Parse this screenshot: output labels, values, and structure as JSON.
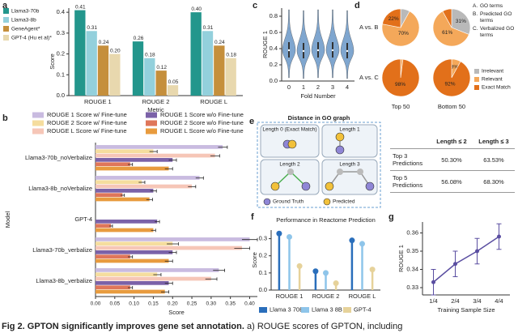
{
  "panel_labels": [
    "a",
    "b",
    "c",
    "d",
    "e",
    "f",
    "g"
  ],
  "caption": {
    "label": "Fig 2.",
    "bold": "GPTON significantly improves gene set annotation.",
    "text": "a) ROUGE scores of GPTON, including"
  },
  "chart_data": [
    {
      "type": "bar",
      "y_label": "Score",
      "x_label": "Metric",
      "categories": [
        "ROUGE 1",
        "ROUGE 2",
        "ROUGE L"
      ],
      "ylim": [
        0,
        0.42
      ],
      "yticks": [
        {
          "value": 0,
          "label": "0.0"
        },
        0.1,
        0.2,
        0.3,
        0.4
      ],
      "legend": "left",
      "series": [
        {
          "name": "Llama3-70b",
          "color": "#23968c",
          "values": [
            0.41,
            0.26,
            0.4
          ],
          "value_labels": [
            "0.41",
            "0.26",
            "0.40"
          ]
        },
        {
          "name": "Llama3-8b",
          "color": "#93d0dc",
          "values": [
            0.31,
            0.18,
            0.31
          ],
          "value_labels": [
            "0.31",
            "0.18",
            "0.31"
          ]
        },
        {
          "name": "GeneAgent*",
          "color": "#c58f3c",
          "values": [
            0.24,
            0.12,
            0.24
          ],
          "value_labels": [
            "0.24",
            "0.12",
            "0.24"
          ]
        },
        {
          "name": "GPT-4 (Hu et al)*",
          "color": "#e8d8ae",
          "values": [
            0.2,
            0.05,
            0.18
          ],
          "value_labels": [
            "0.20",
            "0.05",
            "0.18"
          ]
        }
      ]
    },
    {
      "type": "hbar",
      "y_label": "Model",
      "x_label": "Score",
      "categories": [
        "Llama3-70b_noVerbalize",
        "Llama3-8b_noVerbalize",
        "GPT-4",
        "Llama3-70b_verbalize",
        "Llama3-8b_verbalize"
      ],
      "xlim": [
        0,
        0.42
      ],
      "xticks": [
        {
          "value": 0,
          "label": "0.00"
        },
        {
          "value": 0.05,
          "label": "0.05"
        },
        {
          "value": 0.1,
          "label": "0.10"
        },
        {
          "value": 0.15,
          "label": "0.15"
        },
        {
          "value": 0.2,
          "label": "0.20"
        },
        {
          "value": 0.25,
          "label": "0.25"
        },
        {
          "value": 0.3,
          "label": "0.30"
        },
        {
          "value": 0.35,
          "label": "0.35"
        },
        {
          "value": 0.4,
          "label": "0.40"
        }
      ],
      "legend": "top",
      "series": [
        {
          "name": "ROUGE 1 Score w/ Fine-tune",
          "color": "#c9bbe0",
          "values": [
            0.33,
            0.27,
            null,
            0.4,
            0.32
          ],
          "errors": [
            0.012,
            0.01,
            null,
            0.02,
            0.015
          ]
        },
        {
          "name": "ROUGE 2 Score w/ Fine-tune",
          "color": "#f5dd9e",
          "values": [
            0.15,
            0.12,
            null,
            0.2,
            0.16
          ],
          "errors": [
            0.01,
            0.008,
            null,
            0.015,
            0.01
          ]
        },
        {
          "name": "ROUGE L Score w/ Fine-tune",
          "color": "#f6c6b7",
          "values": [
            0.31,
            0.25,
            null,
            0.38,
            0.3
          ],
          "errors": [
            0.012,
            0.01,
            null,
            0.02,
            0.015
          ]
        },
        {
          "name": "ROUGE 1 Score w/o Fine-tune",
          "color": "#7b62a8",
          "values": [
            0.2,
            0.15,
            0.16,
            0.2,
            0.19
          ],
          "errors": [
            0.01,
            0.008,
            0.006,
            0.01,
            0.01
          ]
        },
        {
          "name": "ROUGE 2 Score w/o Fine-tune",
          "color": "#df765a",
          "values": [
            0.09,
            0.07,
            0.04,
            0.09,
            0.09
          ],
          "errors": [
            0.006,
            0.005,
            0.004,
            0.006,
            0.006
          ]
        },
        {
          "name": "ROUGE L Score w/o Fine-tune",
          "color": "#e89b3e",
          "values": [
            0.19,
            0.14,
            0.15,
            0.19,
            0.18
          ],
          "errors": [
            0.01,
            0.008,
            0.006,
            0.01,
            0.01
          ]
        }
      ]
    },
    {
      "type": "violin",
      "y_label": "ROUGE 1",
      "x_label": "Fold Number",
      "categories": [
        "0",
        "1",
        "2",
        "3",
        "4"
      ],
      "values": [
        0.38,
        0.37,
        0.38,
        0.38,
        0.37
      ],
      "color": "#7fa6cf",
      "ylim": [
        0,
        0.9
      ],
      "yticks": [
        {
          "value": 0,
          "label": "0.0"
        },
        0.2,
        0.4,
        0.6,
        0.8
      ]
    },
    {
      "type": "pie",
      "categories": [
        "Irrelevant",
        "Relevant",
        "Exact Match"
      ],
      "colors": [
        "#b9b9b9",
        "#f4a85a",
        "#e2701a"
      ],
      "rows": [
        "A vs. B",
        "A vs. C"
      ],
      "columns": [
        "Top 50",
        "Bottom 50"
      ],
      "pies": [
        [
          8,
          70,
          22
        ],
        [
          31,
          61,
          8
        ],
        [
          0,
          2,
          98
        ],
        [
          0,
          8,
          92
        ]
      ],
      "value_labels": [
        [
          null,
          "70%",
          "22%"
        ],
        [
          "31%",
          "61%",
          null
        ],
        [
          null,
          null,
          "98%"
        ],
        [
          null,
          "8%",
          "92%"
        ]
      ],
      "term_key": [
        {
          "letter": "A.",
          "text": "GO terms"
        },
        {
          "letter": "B.",
          "text": "Predicted GO terms"
        },
        {
          "letter": "C.",
          "text": "Verbalized GO terms"
        }
      ]
    },
    {
      "type": "lollipop",
      "title": "Performance in Reactome Prediction",
      "y_label": "Score",
      "categories": [
        "ROUGE 1",
        "ROUGE 2",
        "ROUGE L"
      ],
      "ylim": [
        0,
        0.35
      ],
      "yticks": [
        {
          "value": 0,
          "label": "0.0"
        },
        0.1,
        0.2,
        0.3
      ],
      "legend": "bottom",
      "series": [
        {
          "name": "Llama 3 70B",
          "color": "#2a6ebb",
          "values": [
            0.33,
            0.11,
            0.29
          ]
        },
        {
          "name": "Llama 3 8B",
          "color": "#8ec5ea",
          "values": [
            0.31,
            0.1,
            0.27
          ]
        },
        {
          "name": "GPT-4",
          "color": "#e6d29a",
          "values": [
            0.14,
            0.04,
            0.12
          ]
        }
      ]
    },
    {
      "type": "line",
      "y_label": "ROUGE 1",
      "x_label": "Training Sample Size",
      "categories": [
        "1/4",
        "2/4",
        "3/4",
        "4/4"
      ],
      "values": [
        0.333,
        0.343,
        0.35,
        0.358
      ],
      "errors": [
        0.007,
        0.007,
        0.007,
        0.007
      ],
      "color": "#5a4ea1",
      "ylim": [
        0.326,
        0.366
      ],
      "yticks": [
        0.33,
        0.34,
        0.35,
        0.36
      ]
    }
  ],
  "diagram": {
    "title": "Distance in GO graph",
    "boxes": [
      "Length 0 (Exact Match)",
      "Length 1",
      "Length 2",
      "Length 3"
    ],
    "legend": [
      "Ground Truth",
      "Predicted"
    ]
  },
  "table": {
    "header": [
      "Length ≤ 2",
      "Length ≤ 3"
    ],
    "rows": [
      [
        "Top 3 Predictions",
        "50.30%",
        "63.53%"
      ],
      [
        "Top 5 Predictions",
        "56.08%",
        "68.30%"
      ]
    ]
  }
}
